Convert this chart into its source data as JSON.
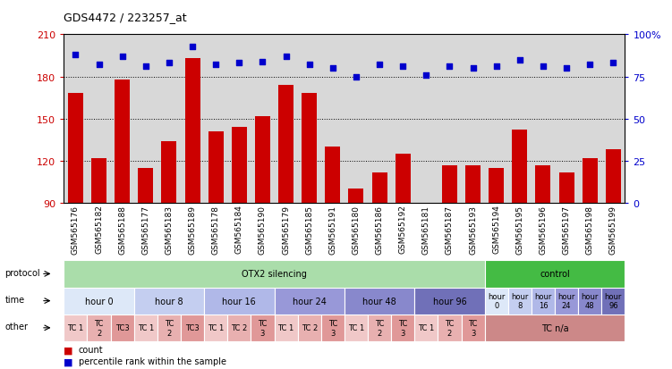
{
  "title": "GDS4472 / 223257_at",
  "samples": [
    "GSM565176",
    "GSM565182",
    "GSM565188",
    "GSM565177",
    "GSM565183",
    "GSM565189",
    "GSM565178",
    "GSM565184",
    "GSM565190",
    "GSM565179",
    "GSM565185",
    "GSM565191",
    "GSM565180",
    "GSM565186",
    "GSM565192",
    "GSM565181",
    "GSM565187",
    "GSM565193",
    "GSM565194",
    "GSM565195",
    "GSM565196",
    "GSM565197",
    "GSM565198",
    "GSM565199"
  ],
  "bar_values": [
    168,
    122,
    178,
    115,
    134,
    193,
    141,
    144,
    152,
    174,
    168,
    130,
    100,
    112,
    125,
    90,
    117,
    117,
    115,
    142,
    117,
    112,
    122,
    128
  ],
  "percentile_values": [
    88,
    82,
    87,
    81,
    83,
    93,
    82,
    83,
    84,
    87,
    82,
    80,
    75,
    82,
    81,
    76,
    81,
    80,
    81,
    85,
    81,
    80,
    82,
    83
  ],
  "ylim_left": [
    90,
    210
  ],
  "ylim_right": [
    0,
    100
  ],
  "yticks_left": [
    90,
    120,
    150,
    180,
    210
  ],
  "yticks_right": [
    0,
    25,
    50,
    75,
    100
  ],
  "bar_color": "#cc0000",
  "dot_color": "#0000cc",
  "bg_color": "#d8d8d8",
  "protocol_row": {
    "label": "protocol",
    "sections": [
      {
        "text": "OTX2 silencing",
        "start": 0,
        "end": 18,
        "color": "#aaddaa"
      },
      {
        "text": "control",
        "start": 18,
        "end": 24,
        "color": "#44bb44"
      }
    ]
  },
  "time_row": {
    "label": "time",
    "sections": [
      {
        "text": "hour 0",
        "start": 0,
        "end": 3,
        "color": "#dde8f8"
      },
      {
        "text": "hour 8",
        "start": 3,
        "end": 6,
        "color": "#c4cef0"
      },
      {
        "text": "hour 16",
        "start": 6,
        "end": 9,
        "color": "#b0b8e8"
      },
      {
        "text": "hour 24",
        "start": 9,
        "end": 12,
        "color": "#9898d8"
      },
      {
        "text": "hour 48",
        "start": 12,
        "end": 15,
        "color": "#8888cc"
      },
      {
        "text": "hour 96",
        "start": 15,
        "end": 18,
        "color": "#7070b8"
      },
      {
        "text": "hour\n0",
        "start": 18,
        "end": 19,
        "color": "#dde8f8"
      },
      {
        "text": "hour\n8",
        "start": 19,
        "end": 20,
        "color": "#c4cef0"
      },
      {
        "text": "hour\n16",
        "start": 20,
        "end": 21,
        "color": "#b0b8e8"
      },
      {
        "text": "hour\n24",
        "start": 21,
        "end": 22,
        "color": "#9898d8"
      },
      {
        "text": "hour\n48",
        "start": 22,
        "end": 23,
        "color": "#8888cc"
      },
      {
        "text": "hour\n96",
        "start": 23,
        "end": 24,
        "color": "#7070b8"
      }
    ]
  },
  "other_row": {
    "label": "other",
    "sections": [
      {
        "text": "TC 1",
        "start": 0,
        "end": 1,
        "color": "#f0c8c8"
      },
      {
        "text": "TC\n2",
        "start": 1,
        "end": 2,
        "color": "#e8b0b0"
      },
      {
        "text": "TC3",
        "start": 2,
        "end": 3,
        "color": "#e09898"
      },
      {
        "text": "TC 1",
        "start": 3,
        "end": 4,
        "color": "#f0c8c8"
      },
      {
        "text": "TC\n2",
        "start": 4,
        "end": 5,
        "color": "#e8b0b0"
      },
      {
        "text": "TC3",
        "start": 5,
        "end": 6,
        "color": "#e09898"
      },
      {
        "text": "TC 1",
        "start": 6,
        "end": 7,
        "color": "#f0c8c8"
      },
      {
        "text": "TC 2",
        "start": 7,
        "end": 8,
        "color": "#e8b0b0"
      },
      {
        "text": "TC\n3",
        "start": 8,
        "end": 9,
        "color": "#e09898"
      },
      {
        "text": "TC 1",
        "start": 9,
        "end": 10,
        "color": "#f0c8c8"
      },
      {
        "text": "TC 2",
        "start": 10,
        "end": 11,
        "color": "#e8b0b0"
      },
      {
        "text": "TC\n3",
        "start": 11,
        "end": 12,
        "color": "#e09898"
      },
      {
        "text": "TC 1",
        "start": 12,
        "end": 13,
        "color": "#f0c8c8"
      },
      {
        "text": "TC\n2",
        "start": 13,
        "end": 14,
        "color": "#e8b0b0"
      },
      {
        "text": "TC\n3",
        "start": 14,
        "end": 15,
        "color": "#e09898"
      },
      {
        "text": "TC 1",
        "start": 15,
        "end": 16,
        "color": "#f0c8c8"
      },
      {
        "text": "TC\n2",
        "start": 16,
        "end": 17,
        "color": "#e8b0b0"
      },
      {
        "text": "TC\n3",
        "start": 17,
        "end": 18,
        "color": "#e09898"
      },
      {
        "text": "TC n/a",
        "start": 18,
        "end": 24,
        "color": "#cc8888"
      }
    ]
  },
  "legend_items": [
    {
      "color": "#cc0000",
      "label": "count"
    },
    {
      "color": "#0000cc",
      "label": "percentile rank within the sample"
    }
  ]
}
